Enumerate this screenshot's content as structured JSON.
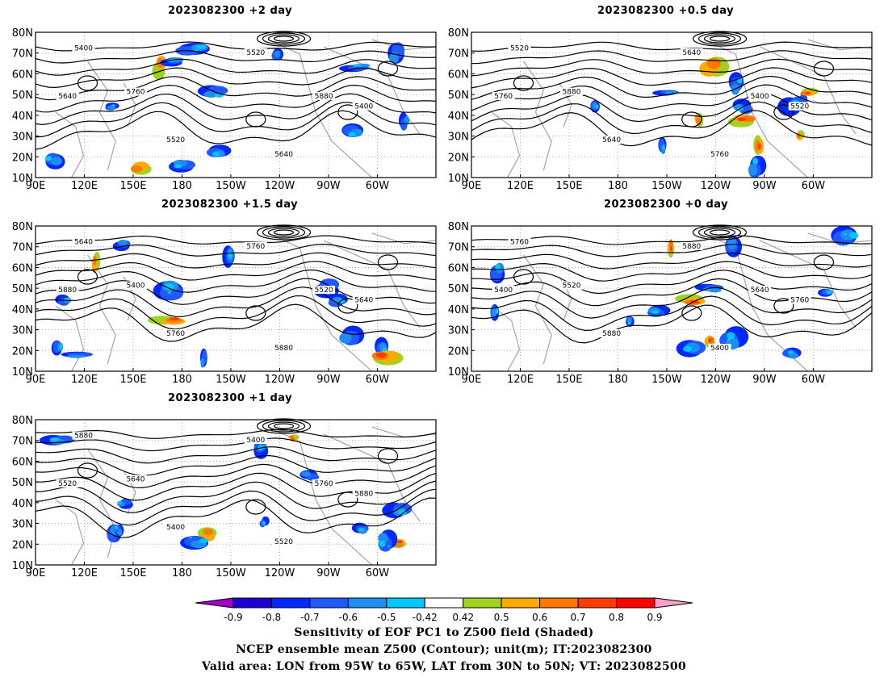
{
  "figure": {
    "panels": [
      {
        "title": "2023082300 +2 day"
      },
      {
        "title": "2023082300 +0.5 day"
      },
      {
        "title": "2023082300 +1.5 day"
      },
      {
        "title": "2023082300 +0 day"
      },
      {
        "title": "2023082300 +1 day"
      }
    ],
    "lat_labels": [
      "80N",
      "70N",
      "60N",
      "50N",
      "40N",
      "30N",
      "20N",
      "10N"
    ],
    "lon_labels": [
      "90E",
      "120E",
      "150E",
      "180",
      "150W",
      "120W",
      "90W",
      "60W"
    ],
    "contour_labels": [
      "5400",
      "5520",
      "5640",
      "5760",
      "5880"
    ],
    "colorbar": {
      "levels": [
        "-0.9",
        "-0.8",
        "-0.7",
        "-0.6",
        "-0.5",
        "-0.42",
        "0.42",
        "0.5",
        "0.6",
        "0.7",
        "0.8",
        "0.9"
      ],
      "colors": [
        "#a000c8",
        "#1e00d2",
        "#0028ff",
        "#1e5aff",
        "#1e8cf0",
        "#00c8ff",
        "#ffffff",
        "#a0d21e",
        "#ffaa00",
        "#ff7800",
        "#ff3c00",
        "#ff0000",
        "#ffa0c8"
      ]
    },
    "footer": {
      "line1": "Sensitivity of EOF PC1 to Z500 field (Shaded)",
      "line2": "NCEP ensemble mean Z500 (Contour); unit(m); IT:2023082300",
      "line3": "Valid area: LON from 95W to 65W, LAT from 30N to 50N; VT: 2023082500"
    }
  }
}
